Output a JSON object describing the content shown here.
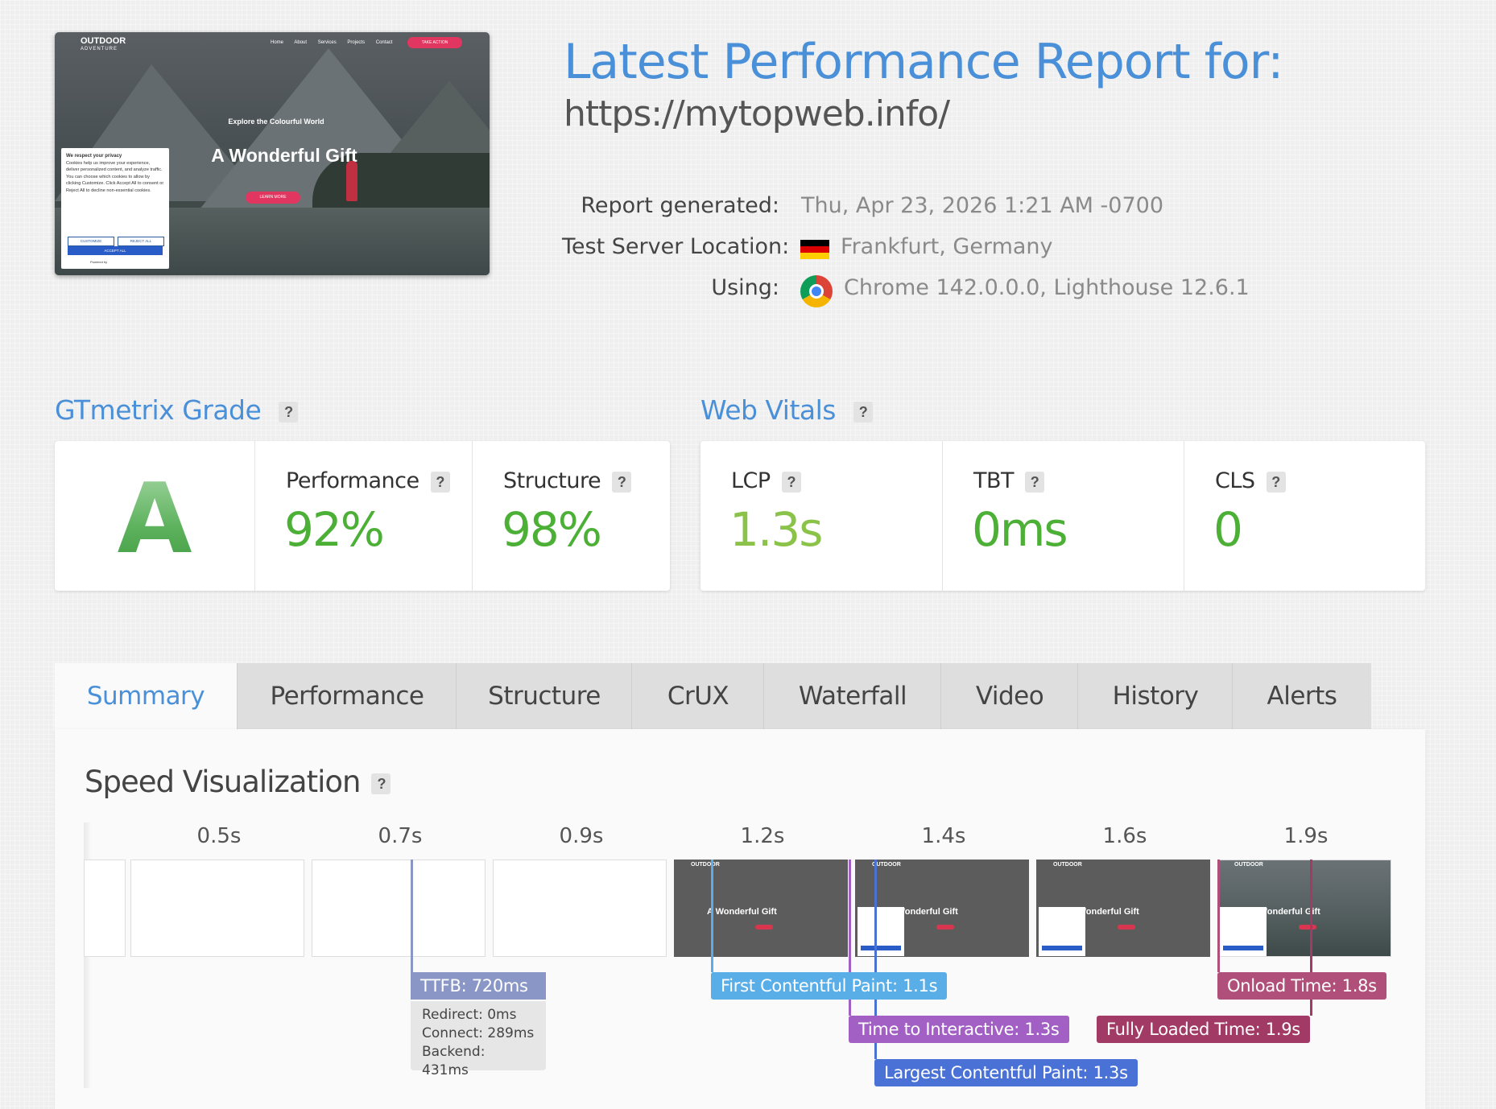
{
  "thumbnail": {
    "logo_line1": "OUTDOOR",
    "logo_line2": "ADVENTURE",
    "nav": [
      "Home",
      "About",
      "Services",
      "Projects",
      "Contact"
    ],
    "cta": "TAKE ACTION",
    "explore": "Explore the Colourful World",
    "hero": "A Wonderful Gift",
    "learn_more": "LEARN MORE",
    "cookie_title": "We respect your privacy",
    "cookie_text": "Cookies help us improve your experience, deliver personalized content, and analyze traffic. You can choose which cookies to allow by clicking Customize. Click Accept All to consent or Reject All to decline non-essential cookies.",
    "cookie_customize": "CUSTOMIZE",
    "cookie_reject": "REJECT ALL",
    "cookie_accept": "ACCEPT ALL",
    "cookie_powered": "Powered by"
  },
  "header": {
    "title": "Latest Performance Report for:",
    "url": "https://mytopweb.info/",
    "report_generated_label": "Report generated:",
    "report_generated_value": "Thu, Apr 23, 2026 1:21 AM -0700",
    "location_label": "Test Server Location:",
    "location_value": "Frankfurt, Germany",
    "using_label": "Using:",
    "using_value": "Chrome 142.0.0.0, Lighthouse 12.6.1",
    "flag_colors": [
      "#000000",
      "#dd0000",
      "#ffce00"
    ]
  },
  "grade": {
    "heading": "GTmetrix Grade",
    "help": "?",
    "letter": "A",
    "performance_label": "Performance",
    "performance_value": "92%",
    "structure_label": "Structure",
    "structure_value": "98%",
    "value_color": "#4caf36"
  },
  "vitals": {
    "heading": "Web Vitals",
    "help": "?",
    "lcp_label": "LCP",
    "lcp_value": "1.3s",
    "tbt_label": "TBT",
    "tbt_value": "0ms",
    "cls_label": "CLS",
    "cls_value": "0",
    "lcp_color": "#8bc34a",
    "good_color": "#4caf36"
  },
  "tabs": [
    "Summary",
    "Performance",
    "Structure",
    "CrUX",
    "Waterfall",
    "Video",
    "History",
    "Alerts"
  ],
  "active_tab": "Summary",
  "speed": {
    "heading": "Speed Visualization",
    "help": "?",
    "ticks": [
      "0.5s",
      "0.7s",
      "0.9s",
      "1.2s",
      "1.4s",
      "1.6s",
      "1.9s"
    ],
    "frame_hero": "A Wonderful Gift",
    "frame_logo": "OUTDOOR",
    "ttfb_label": "TTFB: 720ms",
    "redirect": "Redirect: 0ms",
    "connect": "Connect: 289ms",
    "backend": "Backend: 431ms",
    "fcp_label": "First Contentful Paint: 1.1s",
    "tti_label": "Time to Interactive: 1.3s",
    "lcp_label": "Largest Contentful Paint: 1.3s",
    "onload_label": "Onload Time: 1.8s",
    "fully_loaded_label": "Fully Loaded Time: 1.9s",
    "colors": {
      "ttfb": "#8a97c6",
      "fcp": "#5aaee8",
      "tti": "#a25fc4",
      "lcp": "#4a72d6",
      "onload": "#b0507a",
      "fully_loaded": "#a13a64"
    }
  }
}
